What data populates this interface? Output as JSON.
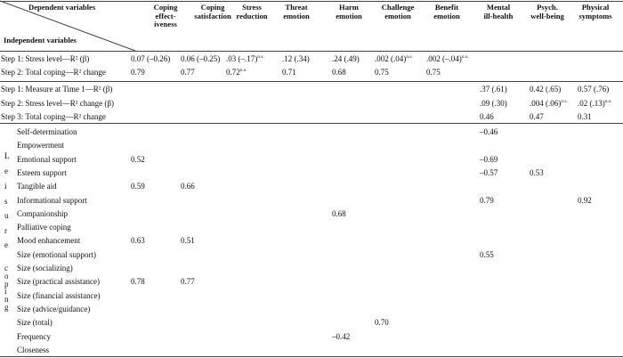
{
  "header": {
    "dependent_label": "Dependent variables",
    "independent_label": "Independent variables",
    "columns": [
      "Coping\neffect-\niveness",
      "Coping\nsatisfaction",
      "Stress\nreduction",
      "Threat\nemotion",
      "Harm\nemotion",
      "Challenge\nemotion",
      "Benefit\nemotion",
      "Mental\nill-health",
      "Psych.\nwell-being",
      "Physical\nsymptoms"
    ]
  },
  "steps_a": [
    {
      "label": "Step 1: Stress level—R² (β)",
      "cells": [
        {
          "col": 0,
          "text": "0.07 (–0.26)",
          "sup": ""
        },
        {
          "col": 1,
          "text": "0.06 (–0.25)",
          "sup": ""
        },
        {
          "col": 2,
          "text": ".03 (–.17)",
          "sup": "n.s."
        },
        {
          "col": 3,
          "text": ".12 (.34)",
          "sup": ""
        },
        {
          "col": 4,
          "text": ".24 (.49)",
          "sup": ""
        },
        {
          "col": 5,
          "text": ".002 (.04)",
          "sup": "n.s."
        },
        {
          "col": 6,
          "text": ".002 (–.04)",
          "sup": "n.s."
        }
      ]
    },
    {
      "label": "Step 2: Total coping—R² change",
      "cells": [
        {
          "col": 0,
          "text": "0.79",
          "sup": ""
        },
        {
          "col": 1,
          "text": "0.77",
          "sup": ""
        },
        {
          "col": 2,
          "text": "0.72",
          "sup": "n.s."
        },
        {
          "col": 3,
          "text": "0.71",
          "sup": ""
        },
        {
          "col": 4,
          "text": "0.68",
          "sup": ""
        },
        {
          "col": 5,
          "text": "0.75",
          "sup": ""
        },
        {
          "col": 6,
          "text": "0.75",
          "sup": ""
        }
      ]
    }
  ],
  "steps_b": [
    {
      "label": "Step 1: Measure at Time 1—R² (β)",
      "cells": [
        {
          "col": 7,
          "text": ".37 (.61)",
          "sup": ""
        },
        {
          "col": 8,
          "text": "0.42 (.65)",
          "sup": ""
        },
        {
          "col": 9,
          "text": "0.57 (.76)",
          "sup": ""
        }
      ]
    },
    {
      "label": "Step 2: Stress level—R² change (β)",
      "cells": [
        {
          "col": 7,
          "text": ".09 (.30)",
          "sup": ""
        },
        {
          "col": 8,
          "text": ".004 (.06)",
          "sup": "n.s."
        },
        {
          "col": 9,
          "text": ".02 (.13)",
          "sup": "n.s."
        }
      ]
    },
    {
      "label": "Step 3: Total coping—R² change",
      "cells": [
        {
          "col": 7,
          "text": "0.46",
          "sup": ""
        },
        {
          "col": 8,
          "text": "0.47",
          "sup": ""
        },
        {
          "col": 9,
          "text": "0.31",
          "sup": ""
        }
      ]
    }
  ],
  "leisure_letters": [
    "L",
    "e",
    "i",
    "s",
    "u",
    "r",
    "e"
  ],
  "coping_letters": [
    "c",
    "o",
    "p",
    "i",
    "n",
    "g"
  ],
  "coping_rows": [
    {
      "label": "Self-determination",
      "cells": [
        {
          "col": 7,
          "text": "–0.46",
          "sup": ""
        }
      ]
    },
    {
      "label": "Empowerment",
      "cells": []
    },
    {
      "label": "Emotional support",
      "cells": [
        {
          "col": 0,
          "text": "0.52",
          "sup": ""
        },
        {
          "col": 7,
          "text": "–0.69",
          "sup": ""
        }
      ]
    },
    {
      "label": "Esteem support",
      "cells": [
        {
          "col": 7,
          "text": "–0.57",
          "sup": ""
        },
        {
          "col": 8,
          "text": "0.53",
          "sup": ""
        }
      ]
    },
    {
      "label": "Tangible aid",
      "cells": [
        {
          "col": 0,
          "text": "0.59",
          "sup": ""
        },
        {
          "col": 1,
          "text": "0.66",
          "sup": ""
        }
      ]
    },
    {
      "label": "Informational support",
      "cells": [
        {
          "col": 7,
          "text": "0.79",
          "sup": ""
        },
        {
          "col": 9,
          "text": "0.92",
          "sup": ""
        }
      ]
    },
    {
      "label": "Companionship",
      "cells": [
        {
          "col": 4,
          "text": "0.68",
          "sup": ""
        }
      ]
    },
    {
      "label": "Palliative coping",
      "cells": []
    },
    {
      "label": "Mood enhancement",
      "cells": [
        {
          "col": 0,
          "text": "0.63",
          "sup": ""
        },
        {
          "col": 1,
          "text": "0.51",
          "sup": ""
        }
      ]
    },
    {
      "label": "Size (emotional support)",
      "cells": [
        {
          "col": 7,
          "text": "0.55",
          "sup": ""
        }
      ]
    },
    {
      "label": "Size (socializing)",
      "cells": []
    },
    {
      "label": "Size (practical assistance)",
      "cells": [
        {
          "col": 0,
          "text": "0.78",
          "sup": ""
        },
        {
          "col": 1,
          "text": "0.77",
          "sup": ""
        }
      ]
    },
    {
      "label": "Size (financial assistance)",
      "cells": []
    },
    {
      "label": "Size (advice/guidance)",
      "cells": []
    },
    {
      "label": "Size (total)",
      "cells": [
        {
          "col": 5,
          "text": "0.70",
          "sup": ""
        }
      ]
    },
    {
      "label": "Frequency",
      "cells": [
        {
          "col": 4,
          "text": "–0.42",
          "sup": ""
        }
      ]
    },
    {
      "label": "Closeness",
      "cells": []
    }
  ]
}
